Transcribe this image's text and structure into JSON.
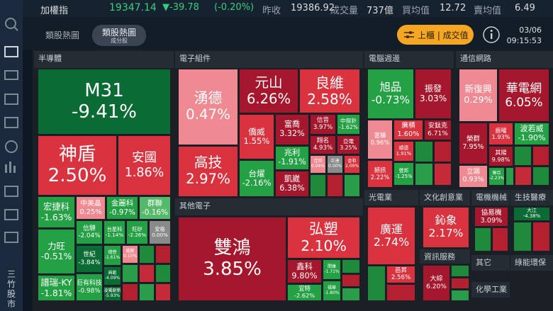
{
  "header": {
    "index_name": "加權指",
    "index_value": "19347.14",
    "change": "▼-39.78",
    "change_pct": "(-0.20%)",
    "stats": [
      {
        "label": "昨收",
        "value": "19386.92"
      },
      {
        "label": "成交量",
        "value": "737億"
      },
      {
        "label": "買均值",
        "value": "12.72"
      },
      {
        "label": "賣均值",
        "value": "6.49"
      }
    ]
  },
  "tabs": [
    {
      "label": "類股熱圖"
    },
    {
      "label": "類股熱圖",
      "sub": "成分股"
    }
  ],
  "filter_button": "上櫃 | 成交值",
  "date": "03/06",
  "time": "09:15:53",
  "sidebar_brand": "三竹股市",
  "sectors": [
    {
      "name": "半導體",
      "tiles": [
        {
          "name": "M31",
          "change": "-9.41%"
        },
        {
          "name": "神盾",
          "change": "2.50%"
        },
        {
          "name": "安國",
          "change": "1.86%"
        },
        {
          "name": "宏捷科",
          "change": "-1.63%"
        },
        {
          "name": "中美晶",
          "change": "0.25%"
        },
        {
          "name": "金麗科",
          "change": "-0.97%"
        },
        {
          "name": "群聯",
          "change": "-0.16%"
        },
        {
          "name": "信驊",
          "change": "-2.04%"
        },
        {
          "name": "台星科",
          "change": "-1.14%"
        },
        {
          "name": "旺矽",
          "change": "-2.26%"
        },
        {
          "name": "安格",
          "change": "0.00%"
        },
        {
          "name": "力旺",
          "change": "-0.51%"
        },
        {
          "name": "世紀",
          "change": "-3.84%"
        },
        {
          "name": "穩懋",
          "change": "-1.61%"
        },
        {
          "name": "威剛",
          "change": "0.10%"
        },
        {
          "name": "典範",
          "change": "-4.09%"
        },
        {
          "name": "譜瑞-KY",
          "change": "-1.81%"
        },
        {
          "name": "巨有科技",
          "change": "-0.98%"
        },
        {
          "name": "凌陽創新",
          "change": "-5.93%"
        }
      ]
    },
    {
      "name": "電子組件",
      "tiles": [
        {
          "name": "湧德",
          "change": "0.47%"
        },
        {
          "name": "元山",
          "change": "6.26%"
        },
        {
          "name": "良維",
          "change": "2.58%"
        },
        {
          "name": "僑威",
          "change": "1.55%"
        },
        {
          "name": "富喬",
          "change": "3.32%"
        },
        {
          "name": "信音",
          "change": "3.97%"
        },
        {
          "name": "中探針",
          "change": "-1.62%"
        },
        {
          "name": "翔名",
          "change": "4.93%"
        },
        {
          "name": "亞電",
          "change": "3.25%"
        },
        {
          "name": "高技",
          "change": "2.97%"
        },
        {
          "name": "兆利",
          "change": "-1.91%"
        },
        {
          "name": "佳邦",
          "change": "0.94%"
        },
        {
          "name": "正達",
          "change": "0.00%"
        },
        {
          "name": "倉和",
          "change": "2.09%"
        },
        {
          "name": "台燿",
          "change": "-2.16%"
        },
        {
          "name": "凱崴",
          "change": "6.38%"
        }
      ]
    },
    {
      "name": "其他電子",
      "tiles": [
        {
          "name": "雙鴻",
          "change": "3.85%"
        },
        {
          "name": "弘塑",
          "change": "2.10%"
        },
        {
          "name": "鑫科",
          "change": "9.80%"
        },
        {
          "name": "閎康",
          "change": "-1.71%"
        },
        {
          "name": "宜特",
          "change": "-2.62%"
        },
        {
          "name": "福華",
          "change": "-1.80%"
        }
      ]
    },
    {
      "name": "電腦週邊",
      "tiles": [
        {
          "name": "旭品",
          "change": "-0.73%"
        },
        {
          "name": "振發",
          "change": "3.03%"
        },
        {
          "name": "富驊",
          "change": "0.96%"
        },
        {
          "name": "廣積",
          "change": "1.60%"
        },
        {
          "name": "安鈦克",
          "change": "6.71%"
        },
        {
          "name": "順德",
          "change": "1.91%"
        },
        {
          "name": "撼訊",
          "change": "2.22%"
        },
        {
          "name": "營邦",
          "change": "-1.25%"
        }
      ]
    },
    {
      "name": "通信網路",
      "tiles": [
        {
          "name": "新復興",
          "change": "0.29%"
        },
        {
          "name": "華電網",
          "change": "6.05%"
        },
        {
          "name": "榮群",
          "change": "7.95%"
        },
        {
          "name": "振曜",
          "change": "1.93%"
        },
        {
          "name": "波若威",
          "change": "-1.90%"
        },
        {
          "name": "其陽",
          "change": "9.98%"
        },
        {
          "name": "立端",
          "change": "0.93%"
        },
        {
          "name": "聯亞",
          "change": "-2.23%"
        }
      ]
    },
    {
      "name": "光電業",
      "tiles": [
        {
          "name": "廣運",
          "change": "2.74%"
        },
        {
          "name": "邑昇",
          "change": "2.56%"
        }
      ]
    },
    {
      "name": "文化創意業",
      "tiles": [
        {
          "name": "鈊象",
          "change": "2.17%"
        }
      ]
    },
    {
      "name": "資訊服務",
      "tiles": [
        {
          "name": "大綜",
          "change": "6.20%"
        }
      ]
    },
    {
      "name": "電機機械",
      "tiles": [
        {
          "name": "協易機",
          "change": "3.09%"
        }
      ]
    },
    {
      "name": "生技醫療",
      "tiles": [
        {
          "name": "大江",
          "change": "-4.38%"
        }
      ]
    },
    {
      "name": "其它"
    },
    {
      "name": "綠能環保"
    },
    {
      "name": "化學工業"
    }
  ]
}
